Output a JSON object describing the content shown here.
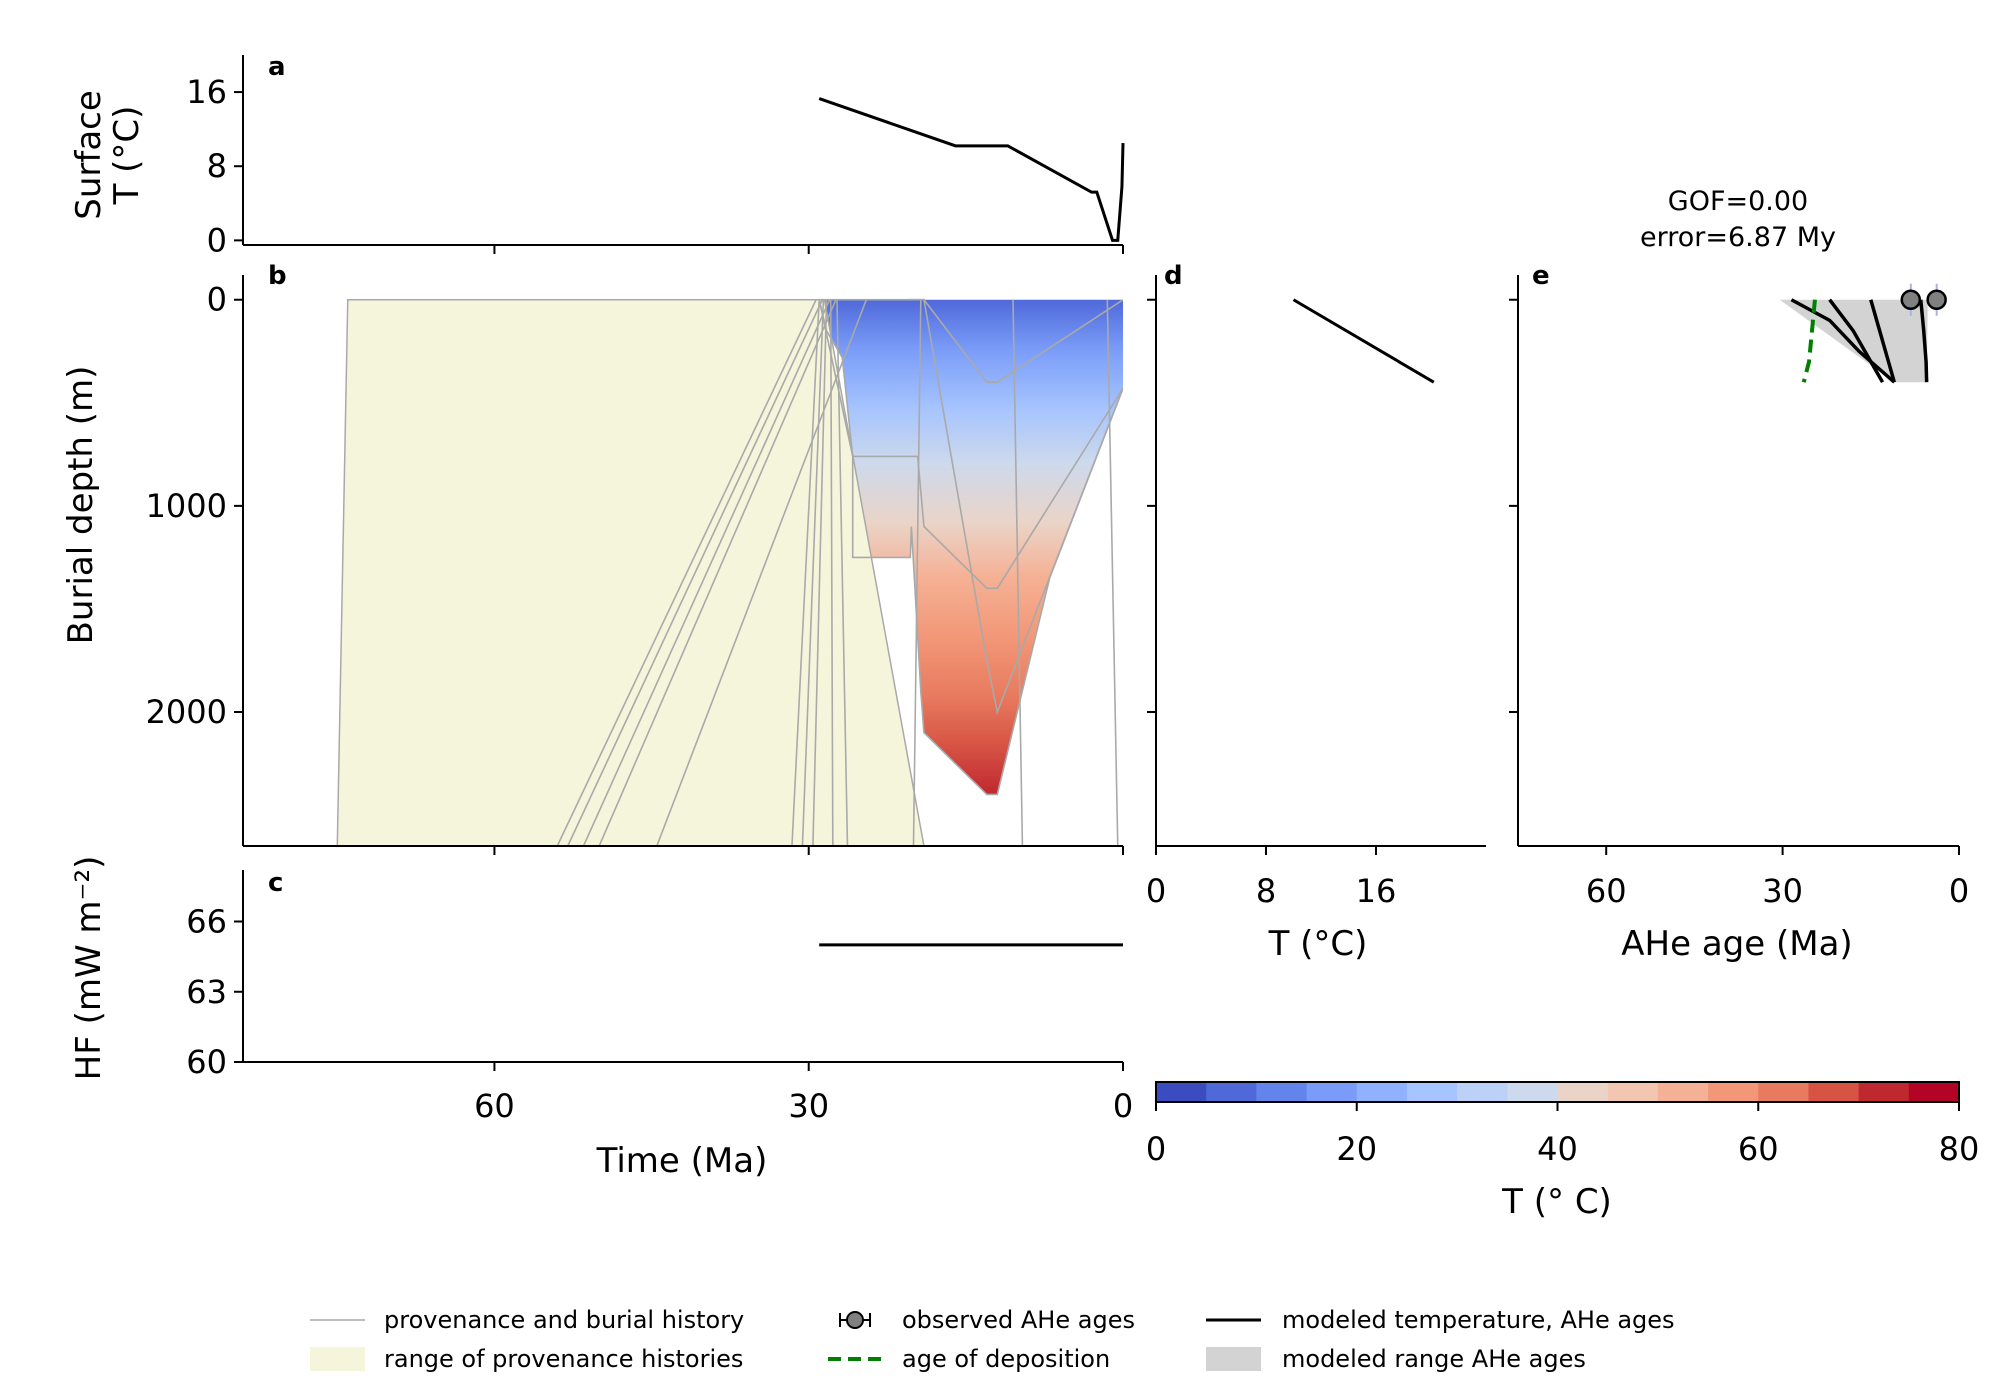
{
  "chart_data": [
    {
      "panel": "a",
      "type": "line",
      "ylabel_line1": "Surface",
      "ylabel_line2": "T (°C)",
      "xlim": [
        84,
        0
      ],
      "ylim": [
        -0.5,
        20
      ],
      "yticks": [
        0,
        8,
        16
      ],
      "xticks": [
        60,
        30,
        0
      ],
      "series": [
        {
          "x": [
            29,
            16,
            11,
            3,
            2.5,
            1,
            0.5,
            0.1,
            0
          ],
          "y": [
            15.3,
            10.2,
            10.2,
            5.2,
            5.2,
            0,
            0,
            5.8,
            10.5
          ]
        }
      ]
    },
    {
      "panel": "b",
      "type": "area",
      "ylabel": "Burial depth (m)",
      "xlim": [
        84,
        0
      ],
      "ylim": [
        2650,
        -120
      ],
      "yticks": [
        0,
        1000,
        2000
      ],
      "xticks": [
        60,
        30,
        0
      ],
      "provenance_range": {
        "x": [
          75,
          74,
          28,
          28.5,
          19,
          18.3,
          75
        ],
        "y": [
          2650,
          0,
          0,
          0,
          2650,
          2650,
          2650
        ]
      },
      "burial_histories": [
        {
          "x": [
            29,
            28.3,
            26.8,
            25.8,
            25.8,
            24.5,
            20.3,
            20.2,
            19.3,
            19,
            13,
            12.5,
            12,
            7,
            0
          ],
          "y": [
            0,
            150,
            280,
            760,
            1250,
            1250,
            1250,
            1100,
            1900,
            2100,
            2400,
            2400,
            2400,
            1350,
            430
          ]
        },
        {
          "x": [
            29,
            25.8,
            25.8,
            19.6,
            19,
            13,
            12,
            0
          ],
          "y": [
            0,
            760,
            760,
            760,
            1100,
            1400,
            1400,
            430
          ]
        },
        {
          "x": [
            29,
            25.8,
            19.6,
            19,
            13,
            12,
            0
          ],
          "y": [
            0,
            0,
            0,
            0,
            1750,
            2000,
            430
          ]
        },
        {
          "x": [
            20.5,
            19,
            13,
            12,
            0
          ],
          "y": [
            0,
            0,
            400,
            400,
            0
          ]
        },
        {
          "x": [
            54,
            29.3
          ],
          "y": [
            2650,
            0
          ]
        },
        {
          "x": [
            53,
            28.7
          ],
          "y": [
            2650,
            0
          ]
        },
        {
          "x": [
            51.5,
            28
          ],
          "y": [
            2650,
            0
          ]
        },
        {
          "x": [
            50,
            27.4
          ],
          "y": [
            2650,
            0
          ]
        },
        {
          "x": [
            44.5,
            24.5
          ],
          "y": [
            2650,
            0
          ]
        },
        {
          "x": [
            31.6,
            29
          ],
          "y": [
            2650,
            0
          ]
        },
        {
          "x": [
            30.6,
            28.6
          ],
          "y": [
            2650,
            0
          ]
        },
        {
          "x": [
            29.6,
            28.3
          ],
          "y": [
            2650,
            0
          ]
        },
        {
          "x": [
            27.7,
            27.9
          ],
          "y": [
            2650,
            0
          ]
        },
        {
          "x": [
            26.3,
            27.3
          ],
          "y": [
            2650,
            0
          ]
        },
        {
          "x": [
            20,
            19.3
          ],
          "y": [
            2650,
            0
          ]
        },
        {
          "x": [
            9.6,
            10.5
          ],
          "y": [
            2650,
            0
          ]
        },
        {
          "x": [
            0.5,
            1.5
          ],
          "y": [
            2650,
            0
          ]
        }
      ],
      "temperature_field_colormap": "coolwarm"
    },
    {
      "panel": "c",
      "type": "line",
      "ylabel": "HF (mW m⁻²)",
      "xlabel": "Time (Ma)",
      "xlim": [
        84,
        0
      ],
      "ylim": [
        60,
        68.2
      ],
      "yticks": [
        60,
        63,
        66
      ],
      "xticks": [
        60,
        30,
        0
      ],
      "series": [
        {
          "x": [
            29,
            0
          ],
          "y": [
            65,
            65
          ]
        }
      ]
    },
    {
      "panel": "d",
      "type": "line",
      "xlabel": "T (°C)",
      "xlim": [
        0,
        24
      ],
      "ylim": [
        2650,
        -120
      ],
      "xticks": [
        0,
        8,
        16
      ],
      "series": [
        {
          "x": [
            10,
            20.2
          ],
          "y": [
            0,
            400
          ]
        }
      ]
    },
    {
      "panel": "e",
      "type": "line",
      "title_line1": "GOF=0.00",
      "title_line2": "error=6.87 My",
      "xlabel": "AHe age (Ma)",
      "xlim": [
        75,
        0
      ],
      "ylim": [
        2650,
        -120
      ],
      "xticks": [
        60,
        30,
        0
      ],
      "modeled_range": {
        "x": [
          30.5,
          26.4,
          18.5,
          14.3,
          11,
          6.8,
          5.3,
          5.5,
          11,
          30.5
        ],
        "y": [
          0,
          0,
          0,
          0,
          0,
          0,
          0,
          400,
          400,
          0
        ]
      },
      "modeled_ages": [
        {
          "x": [
            28.5,
            22,
            17,
            11
          ],
          "y": [
            0,
            100,
            250,
            400
          ]
        },
        {
          "x": [
            22,
            18,
            15,
            13
          ],
          "y": [
            0,
            150,
            300,
            400
          ]
        },
        {
          "x": [
            15,
            13.5,
            12,
            11
          ],
          "y": [
            0,
            150,
            300,
            400
          ]
        },
        {
          "x": [
            6.5,
            6,
            5.6,
            5.5
          ],
          "y": [
            0,
            150,
            300,
            400
          ]
        }
      ],
      "deposition_age": {
        "x": [
          24.5,
          25,
          25.5,
          26.4
        ],
        "y": [
          0,
          150,
          300,
          400
        ]
      },
      "observed_ages": [
        {
          "x": 8.2,
          "y": 0,
          "err": 1.0
        },
        {
          "x": 3.8,
          "y": 0,
          "err": 0.8
        }
      ]
    }
  ],
  "colorbar": {
    "label": "T (° C)",
    "range": [
      0,
      80
    ],
    "ticks": [
      0,
      20,
      40,
      60,
      80
    ],
    "levels": 16,
    "colors": [
      "#3b4cc0",
      "#4f69d9",
      "#6384eb",
      "#7a9cf8",
      "#90b2fe",
      "#a6c4fe",
      "#bbd1f8",
      "#cdd9ec",
      "#dddcdc",
      "#ead4c8",
      "#f2c6b0",
      "#f5b195",
      "#f29878",
      "#e87b5f",
      "#d75445",
      "#c0282f",
      "#b40426"
    ]
  },
  "legend": {
    "items": [
      {
        "label": "provenance and burial history",
        "kind": "thin-gray-line"
      },
      {
        "label": "range of provenance histories",
        "kind": "cream-patch"
      },
      {
        "label": "observed AHe ages",
        "kind": "gray-dot-errorbar"
      },
      {
        "label": "age of deposition",
        "kind": "green-dashed-line"
      },
      {
        "label": "modeled temperature, AHe ages",
        "kind": "black-line"
      },
      {
        "label": "modeled range AHe ages",
        "kind": "gray-patch"
      }
    ]
  },
  "colors": {
    "provenance_fill": "#f5f5dc",
    "burial_line": "#a9a9a9",
    "model_line": "#000000",
    "model_range": "#d3d3d3",
    "deposition": "#008000",
    "observed": "#808080"
  }
}
